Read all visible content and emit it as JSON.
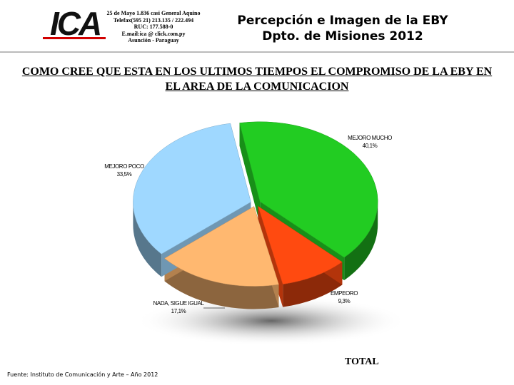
{
  "header": {
    "logo": "ICA",
    "address": [
      "25 de Mayo 1.836 casi General Aquino",
      "Telefax(595 21) 213.135 / 222.494",
      "RUC: 177.588-0",
      "E.mail:ica @ click.com.py",
      "Asunción - Paraguay"
    ],
    "title": "Percepción e Imagen de la EBY",
    "subtitle": "Dpto. de Misiones 2012"
  },
  "chart_data": {
    "type": "pie",
    "title": "COMO CREE QUE ESTA EN LOS ULTIMOS TIEMPOS EL COMPROMISO DE LA EBY EN EL AREA DE LA COMUNICACION",
    "categories": [
      "MEJORO MUCHO",
      "EMPEORO",
      "NADA, SIGUE IGUAL",
      "MEJORO POCO"
    ],
    "values": [
      40.1,
      9.3,
      17.1,
      33.5
    ],
    "value_labels": [
      "40,1%",
      "9,3%",
      "17,1%",
      "33,5%"
    ],
    "colors": [
      "#22cc22",
      "#ff4a10",
      "#ffb870",
      "#9fd8ff"
    ],
    "caption": "TOTAL"
  },
  "footer": {
    "source": "Fuente: Instituto de Comunicación y Arte – Año 2012"
  }
}
